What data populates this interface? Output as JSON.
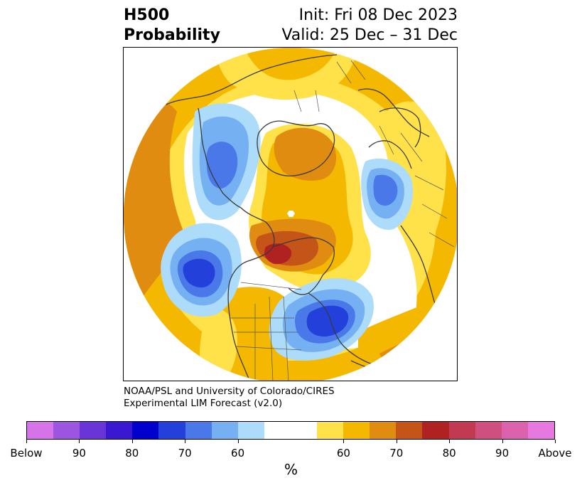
{
  "header": {
    "title_line1": "H500",
    "title_line2": "Probability",
    "init_text": "Init: Fri 08 Dec 2023",
    "valid_text": "Valid: 25 Dec – 31 Dec"
  },
  "credit": {
    "line1": "NOAA/PSL and University of Colorado/CIRES",
    "line2": "Experimental LIM Forecast (v2.0)"
  },
  "colorbar": {
    "colors": [
      "#d773e8",
      "#9b55e0",
      "#6a35d8",
      "#3a18d2",
      "#0000cd",
      "#2440da",
      "#4b78e8",
      "#74b0f2",
      "#acdcfa",
      "#ffffff",
      "#ffffff",
      "#ffe14a",
      "#f4b800",
      "#df8c10",
      "#c55418",
      "#b02222",
      "#c23a52",
      "#cf4f80",
      "#dc62ad",
      "#e778e0"
    ],
    "tick_labels": [
      "Below",
      "90",
      "80",
      "70",
      "60",
      "60",
      "70",
      "80",
      "90",
      "Above"
    ],
    "unit_label": "%"
  },
  "map": {
    "projection": "north-polar-stereographic",
    "field": "500 hPa height anomaly probability",
    "colors": {
      "ocean_bg": "#ffffff",
      "yellow": "#ffe14a",
      "gold": "#f4b800",
      "orange": "#df8c10",
      "burnt": "#c55418",
      "red": "#b02222",
      "light_blue": "#acdcfa",
      "sky_blue": "#74b0f2",
      "mid_blue": "#4b78e8",
      "royal_blue": "#2440da",
      "coast": "#3a3a3a"
    }
  }
}
